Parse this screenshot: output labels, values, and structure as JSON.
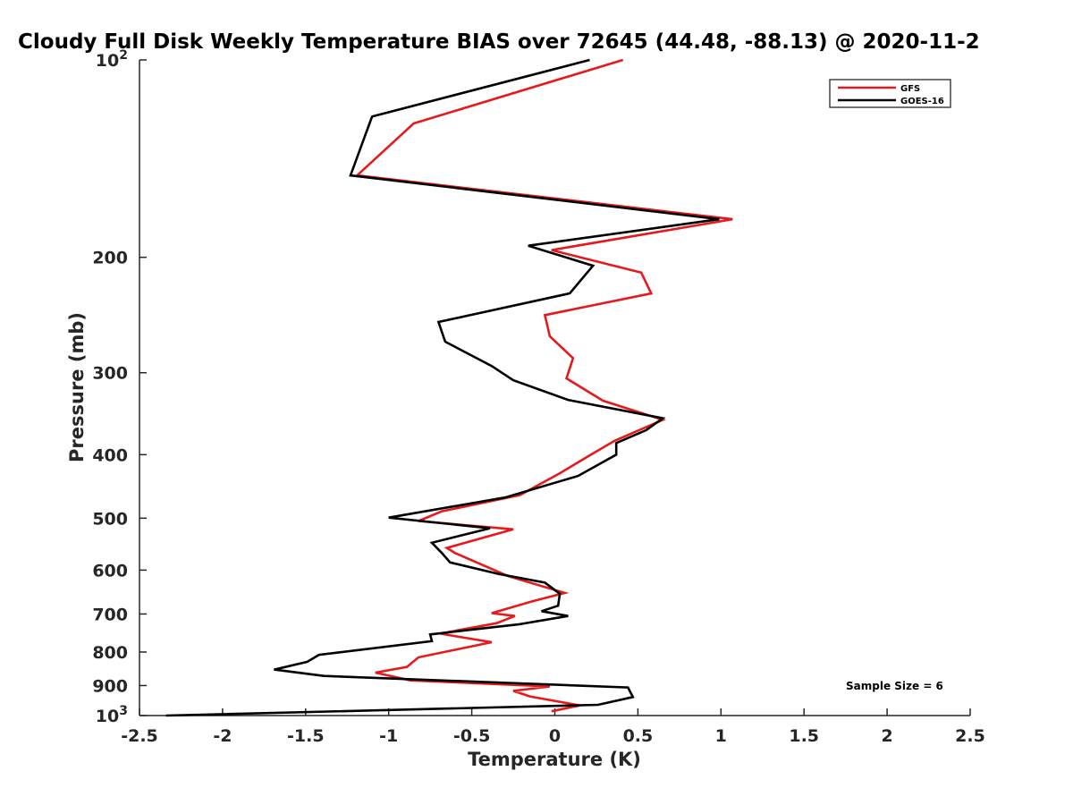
{
  "chart_data": {
    "type": "line",
    "title": "Cloudy Full Disk Weekly Temperature BIAS over 72645 (44.48, -88.13) @ 2020-11-2",
    "xlabel": "Temperature (K)",
    "ylabel": "Pressure (mb)",
    "xlim": [
      -2.5,
      2.5
    ],
    "ylim": [
      100,
      1000
    ],
    "y_scale": "log",
    "y_reversed": true,
    "grid": false,
    "legend_position": "top-right",
    "annotation": "Sample Size = 6",
    "x_ticks": [
      {
        "value": -2.5,
        "label": "-2.5"
      },
      {
        "value": -2,
        "label": "-2"
      },
      {
        "value": -1.5,
        "label": "-1.5"
      },
      {
        "value": -1,
        "label": "-1"
      },
      {
        "value": -0.5,
        "label": "-0.5"
      },
      {
        "value": 0,
        "label": "0"
      },
      {
        "value": 0.5,
        "label": "0.5"
      },
      {
        "value": 1,
        "label": "1"
      },
      {
        "value": 1.5,
        "label": "1.5"
      },
      {
        "value": 2,
        "label": "2"
      },
      {
        "value": 2.5,
        "label": "2.5"
      }
    ],
    "y_ticks": [
      {
        "value": 100,
        "label": "10",
        "sup": "2"
      },
      {
        "value": 200,
        "label": "200"
      },
      {
        "value": 300,
        "label": "300"
      },
      {
        "value": 400,
        "label": "400"
      },
      {
        "value": 500,
        "label": "500"
      },
      {
        "value": 600,
        "label": "600"
      },
      {
        "value": 700,
        "label": "700"
      },
      {
        "value": 800,
        "label": "800"
      },
      {
        "value": 900,
        "label": "900"
      },
      {
        "value": 1000,
        "label": "10",
        "sup": "3"
      }
    ],
    "series": [
      {
        "name": "GFS",
        "color": "#e41a1c",
        "points": [
          [
            0.41,
            100
          ],
          [
            -0.85,
            125
          ],
          [
            -1.19,
            150
          ],
          [
            1.07,
            175
          ],
          [
            -0.02,
            195
          ],
          [
            0.52,
            211
          ],
          [
            0.58,
            227
          ],
          [
            -0.06,
            245
          ],
          [
            -0.03,
            264
          ],
          [
            0.11,
            285
          ],
          [
            0.07,
            306
          ],
          [
            0.29,
            331
          ],
          [
            0.65,
            354
          ],
          [
            0.36,
            381
          ],
          [
            0.21,
            401
          ],
          [
            0.03,
            427
          ],
          [
            -0.21,
            461
          ],
          [
            -0.68,
            488
          ],
          [
            -0.82,
            505
          ],
          [
            -0.25,
            520
          ],
          [
            -0.65,
            555
          ],
          [
            -0.6,
            565
          ],
          [
            -0.28,
            613
          ],
          [
            0.06,
            650
          ],
          [
            -0.13,
            669
          ],
          [
            -0.38,
            698
          ],
          [
            -0.24,
            705
          ],
          [
            -0.35,
            723
          ],
          [
            -0.69,
            750
          ],
          [
            -0.38,
            773
          ],
          [
            -0.82,
            815
          ],
          [
            -0.89,
            843
          ],
          [
            -1.08,
            860
          ],
          [
            -0.87,
            884
          ],
          [
            -0.03,
            903
          ],
          [
            -0.25,
            917
          ],
          [
            -0.15,
            935
          ],
          [
            0.15,
            965
          ],
          [
            -0.02,
            985
          ]
        ]
      },
      {
        "name": "GOES-16",
        "color": "#000000",
        "points": [
          [
            0.21,
            100
          ],
          [
            -1.1,
            122
          ],
          [
            -1.23,
            150
          ],
          [
            0.99,
            175
          ],
          [
            -0.16,
            192
          ],
          [
            0.23,
            206
          ],
          [
            0.09,
            227
          ],
          [
            -0.7,
            251
          ],
          [
            -0.66,
            269
          ],
          [
            -0.38,
            293
          ],
          [
            -0.25,
            308
          ],
          [
            0.08,
            330
          ],
          [
            0.65,
            352
          ],
          [
            0.55,
            367
          ],
          [
            0.37,
            384
          ],
          [
            0.37,
            400
          ],
          [
            0.14,
            431
          ],
          [
            -0.3,
            465
          ],
          [
            -1.0,
            499
          ],
          [
            -0.39,
            518
          ],
          [
            -0.74,
            545
          ],
          [
            -0.68,
            565
          ],
          [
            -0.63,
            584
          ],
          [
            -0.34,
            608
          ],
          [
            -0.06,
            627
          ],
          [
            0.03,
            652
          ],
          [
            0.02,
            680
          ],
          [
            -0.08,
            693
          ],
          [
            0.08,
            705
          ],
          [
            -0.22,
            726
          ],
          [
            -0.75,
            752
          ],
          [
            -0.74,
            770
          ],
          [
            -1.42,
            808
          ],
          [
            -1.49,
            828
          ],
          [
            -1.69,
            851
          ],
          [
            -1.39,
            870
          ],
          [
            0.44,
            906
          ],
          [
            0.47,
            937
          ],
          [
            0.26,
            963
          ],
          [
            -2.34,
            1000
          ]
        ]
      }
    ]
  }
}
